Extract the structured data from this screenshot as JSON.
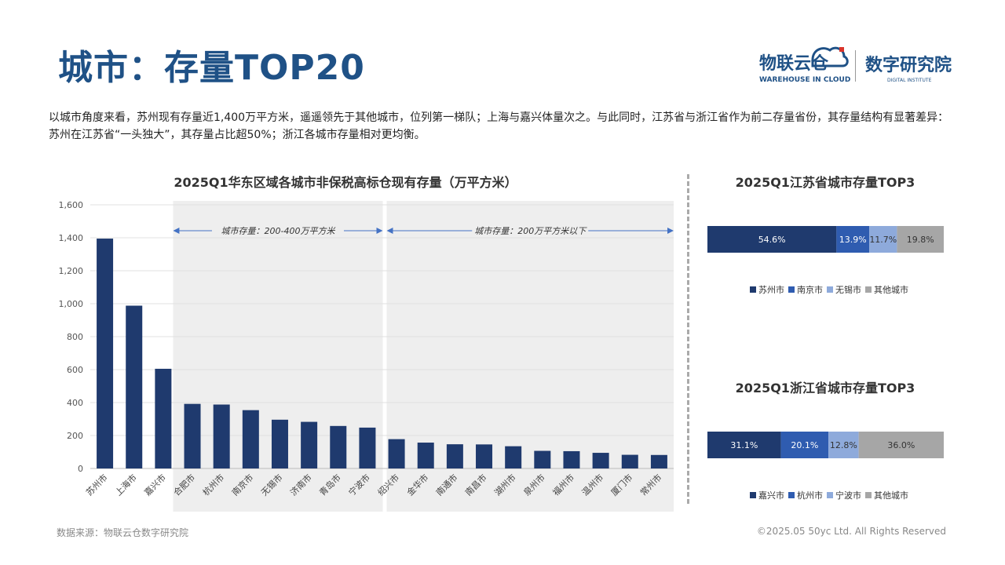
{
  "page": {
    "title": "城市：存量TOP20",
    "description": "以城市角度来看，苏州现有存量近1,400万平方米，遥遥领先于其他城市，位列第一梯队；上海与嘉兴体量次之。与此同时，江苏省与浙江省作为前二存量省份，其存量结构有显著差异：苏州在江苏省“一头独大”，其存量占比超50%；浙江各城市存量相对更均衡。",
    "source": "数据来源：物联云仓数字研究院",
    "copyright": "©2025.05 50yc Ltd. All Rights Reserved",
    "logo1": {
      "name": "物联云仓",
      "sub": "WAREHOUSE IN CLOUD"
    },
    "logo2": {
      "name": "数字研究院",
      "sub": "DIGITAL INSTITUTE"
    }
  },
  "colors": {
    "title": "#1f5186",
    "bar": "#1f3a6e",
    "band": "#eeeeee",
    "arrow": "#4472c4",
    "c1": "#1f3a6e",
    "c2": "#2f5cb0",
    "c3": "#8eaadb",
    "c4": "#a6a6a6"
  },
  "chart_data": [
    {
      "type": "bar",
      "title": "2025Q1华东区域各城市非保税高标仓现有存量（万平方米）",
      "categories": [
        "苏州市",
        "上海市",
        "嘉兴市",
        "合肥市",
        "杭州市",
        "南京市",
        "无锡市",
        "济南市",
        "青岛市",
        "宁波市",
        "绍兴市",
        "金华市",
        "南通市",
        "南昌市",
        "湖州市",
        "泉州市",
        "福州市",
        "温州市",
        "厦门市",
        "常州市"
      ],
      "values": [
        1395,
        988,
        605,
        392,
        388,
        354,
        296,
        283,
        258,
        248,
        178,
        157,
        147,
        146,
        135,
        107,
        105,
        95,
        83,
        82
      ],
      "ylim": [
        0,
        1600
      ],
      "yticks": [
        0,
        200,
        400,
        600,
        800,
        1000,
        1200,
        1400,
        1600
      ],
      "ytick_labels": [
        "0",
        "200",
        "400",
        "600",
        "800",
        "1,000",
        "1,200",
        "1,400",
        "1,600"
      ],
      "grid": true,
      "annotations": [
        {
          "text": "城市存量：200-400万平方米",
          "from_index": 3,
          "to_index": 9
        },
        {
          "text": "城市存量：200万平方米以下",
          "from_index": 10,
          "to_index": 19
        }
      ]
    },
    {
      "type": "bar",
      "stacked": "horizontal-100%",
      "title": "2025Q1江苏省城市存量TOP3",
      "series": [
        {
          "name": "苏州市",
          "value": 54.6,
          "label": "54.6%"
        },
        {
          "name": "南京市",
          "value": 13.9,
          "label": "13.9%"
        },
        {
          "name": "无锡市",
          "value": 11.7,
          "label": "11.7%"
        },
        {
          "name": "其他城市",
          "value": 19.8,
          "label": "19.8%"
        }
      ],
      "legend": "bottom"
    },
    {
      "type": "bar",
      "stacked": "horizontal-100%",
      "title": "2025Q1浙江省城市存量TOP3",
      "series": [
        {
          "name": "嘉兴市",
          "value": 31.1,
          "label": "31.1%"
        },
        {
          "name": "杭州市",
          "value": 20.1,
          "label": "20.1%"
        },
        {
          "name": "宁波市",
          "value": 12.8,
          "label": "12.8%"
        },
        {
          "name": "其他城市",
          "value": 36.0,
          "label": "36.0%"
        }
      ],
      "legend": "bottom"
    }
  ]
}
